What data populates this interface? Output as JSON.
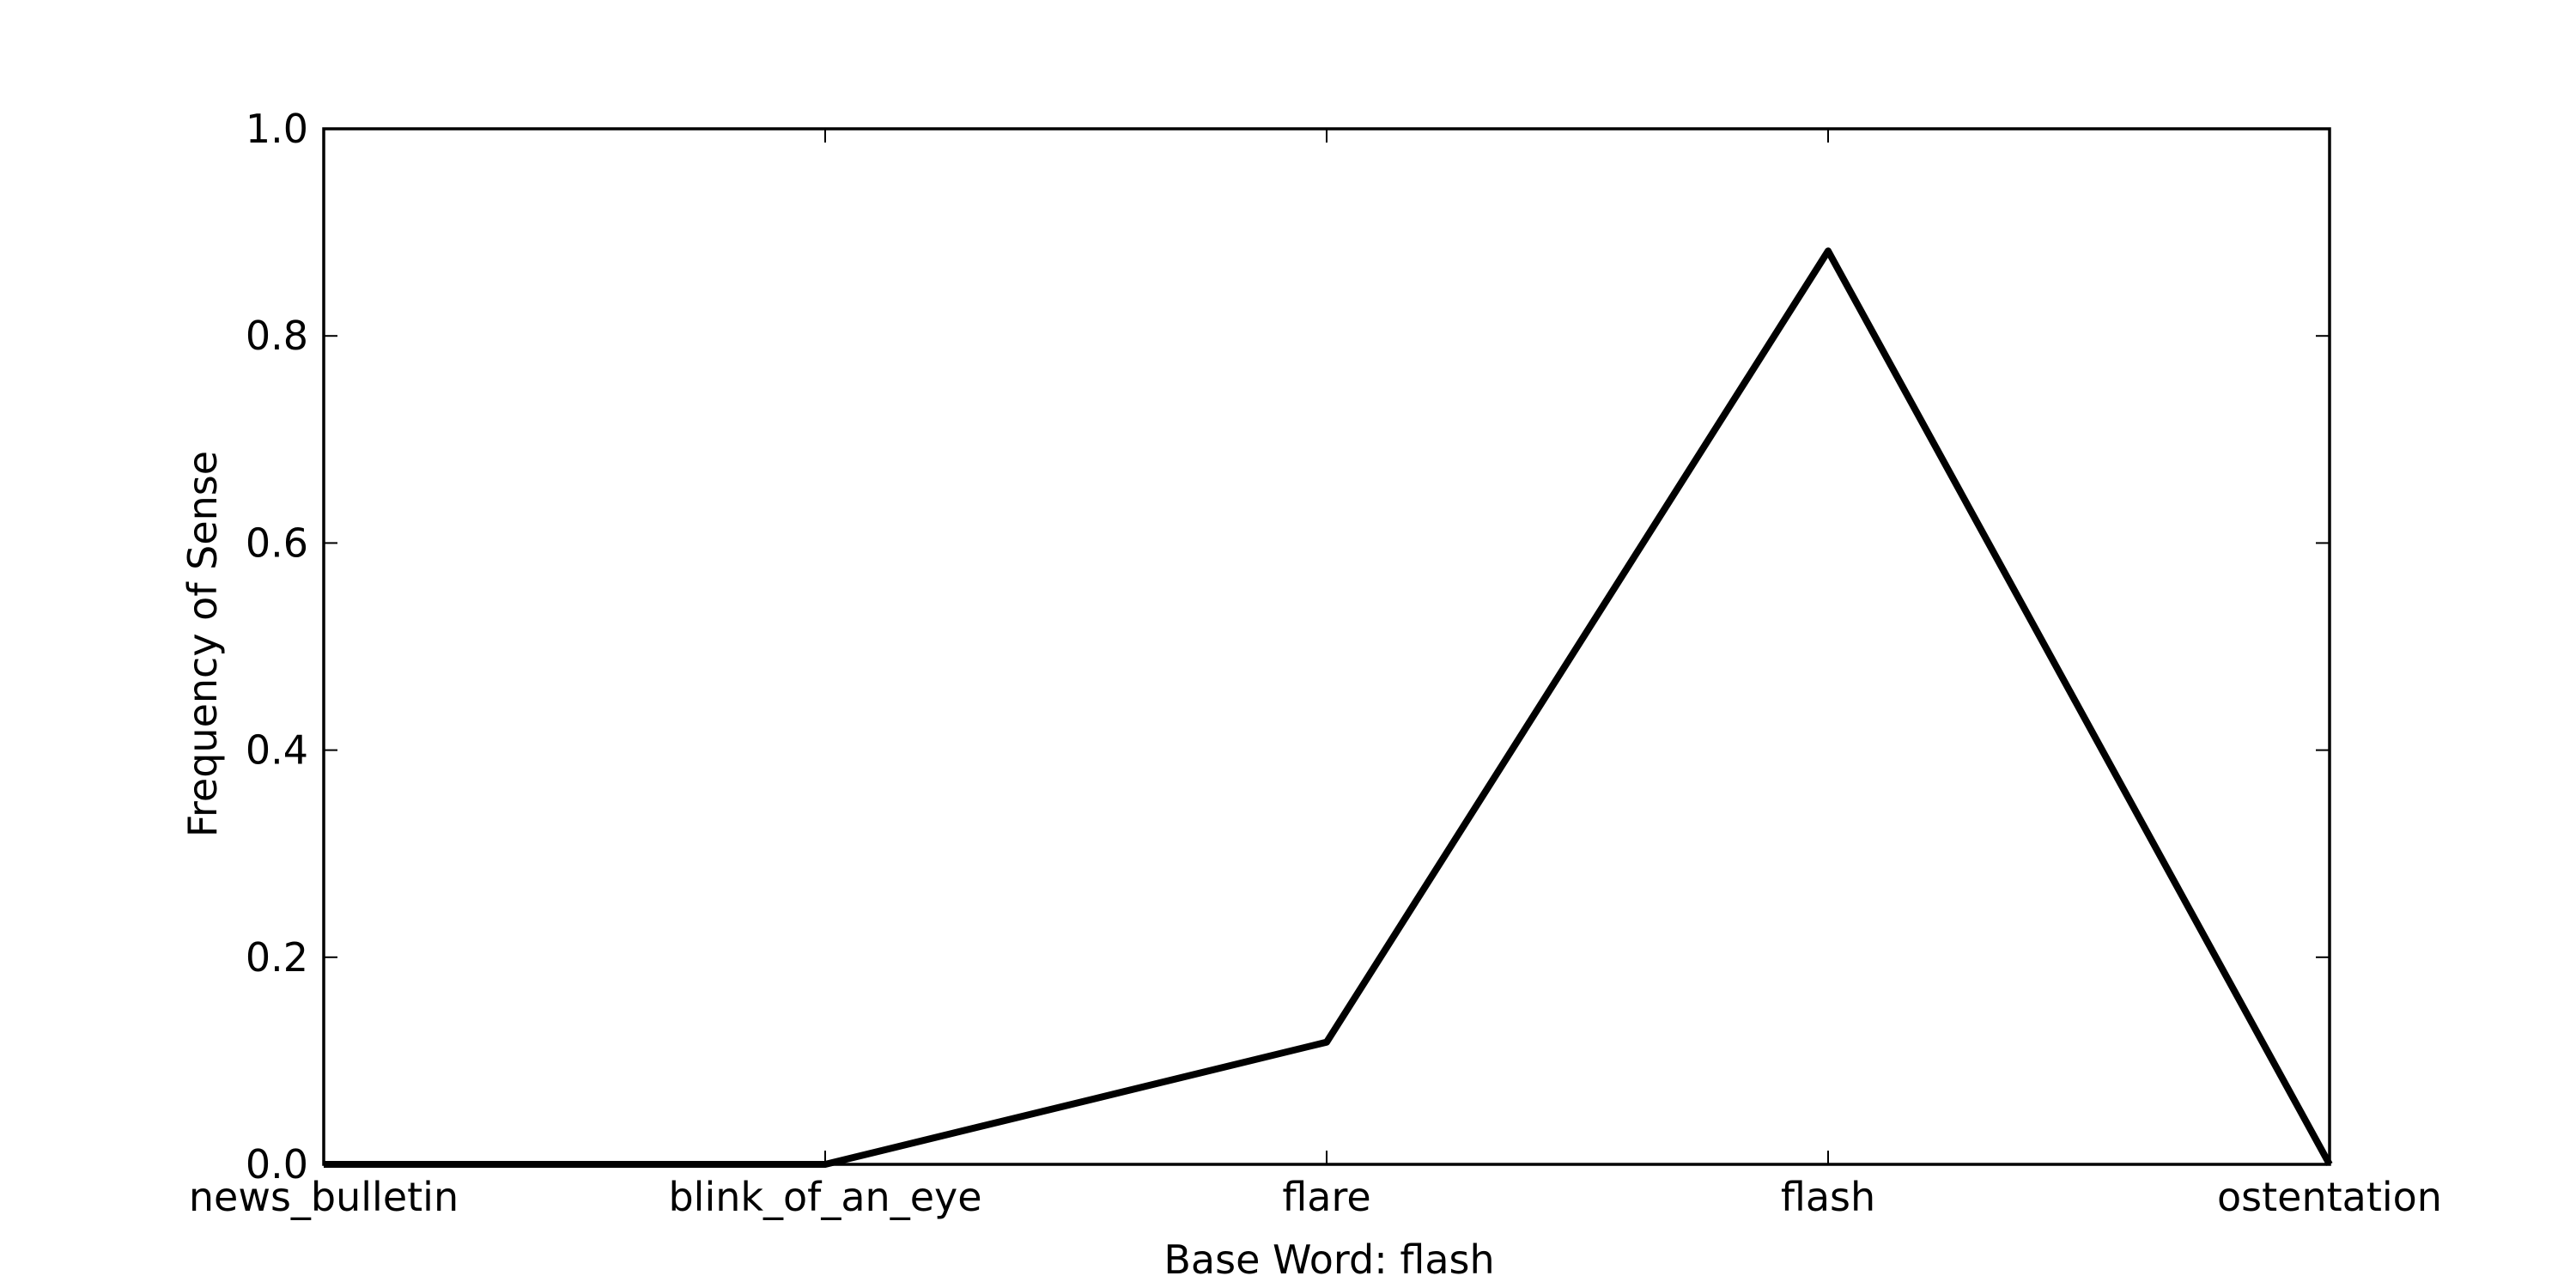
{
  "chart_data": {
    "type": "line",
    "title": "",
    "xlabel": "Base Word: flash",
    "ylabel": "Frequency of Sense",
    "categories": [
      "news_bulletin",
      "blink_of_an_eye",
      "flare",
      "flash",
      "ostentation"
    ],
    "series": [
      {
        "values": [
          0.0,
          0.0,
          0.118,
          0.882,
          0.0
        ],
        "color": "#000000"
      }
    ],
    "ylim": [
      0.0,
      1.0
    ],
    "yticks": [
      "0.0",
      "0.2",
      "0.4",
      "0.6",
      "0.8",
      "1.0"
    ],
    "grid": false,
    "legend": "none"
  }
}
